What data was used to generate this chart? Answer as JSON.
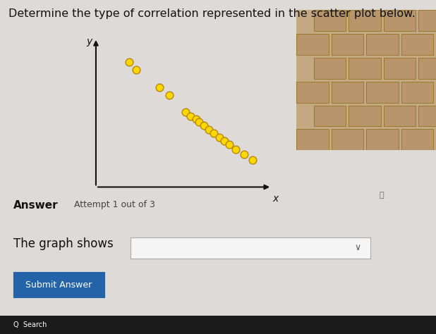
{
  "title": "Determine the type of correlation represented in the scatter plot below.",
  "title_fontsize": 11.5,
  "scatter_x": [
    1.0,
    1.2,
    1.9,
    2.2,
    2.7,
    2.85,
    3.0,
    3.1,
    3.25,
    3.4,
    3.55,
    3.7,
    3.85,
    4.0,
    4.2,
    4.45,
    4.7
  ],
  "scatter_y": [
    6.5,
    6.1,
    5.2,
    4.8,
    3.9,
    3.7,
    3.55,
    3.4,
    3.2,
    3.0,
    2.8,
    2.6,
    2.4,
    2.2,
    1.95,
    1.7,
    1.4
  ],
  "dot_color": "#FFD700",
  "dot_edgecolor": "#B8860B",
  "dot_size": 60,
  "dot_linewidth": 1.0,
  "answer_label": "Answer",
  "attempt_label": "Attempt 1 out of 3",
  "graph_shows_label": "The graph shows",
  "submit_button_text": "Submit Answer",
  "submit_button_color": "#2563a8",
  "submit_button_text_color": "#ffffff",
  "background_color": "#dddad8",
  "plot_bg_color": "none",
  "axis_color": "#111111",
  "ylabel": "y",
  "xlabel": "x",
  "xlim": [
    0,
    5.5
  ],
  "ylim": [
    0,
    8.0
  ],
  "fig_width": 6.18,
  "fig_height": 4.74
}
